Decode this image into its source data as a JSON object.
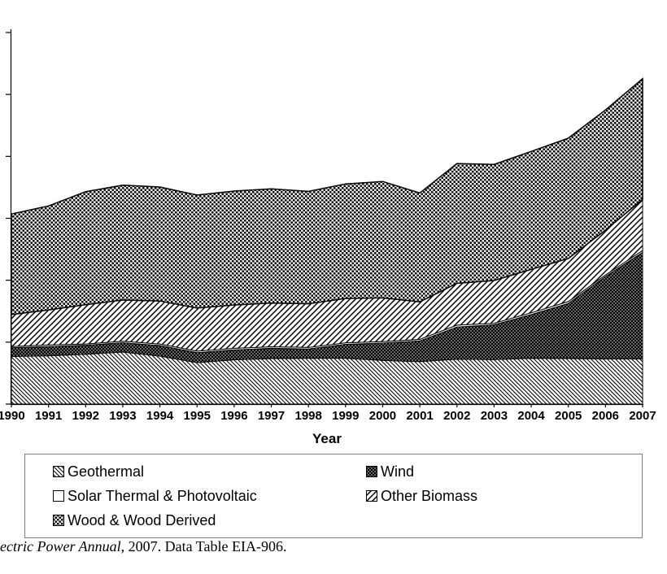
{
  "chart_data": {
    "type": "area",
    "stacked": true,
    "title": "",
    "xlabel": "Year",
    "ylabel": "",
    "ylim": [
      0,
      120
    ],
    "y_tick_labels_visible": false,
    "legend_position": "bottom",
    "x": [
      1990,
      1991,
      1992,
      1993,
      1994,
      1995,
      1996,
      1997,
      1998,
      1999,
      2000,
      2001,
      2002,
      2003,
      2004,
      2005,
      2006,
      2007
    ],
    "series": [
      {
        "name": "Geothermal",
        "pattern": "geothermal",
        "values": [
          15.4,
          15.6,
          16.1,
          16.8,
          15.5,
          13.4,
          14.3,
          14.7,
          14.8,
          14.8,
          14.1,
          13.7,
          14.5,
          14.4,
          14.8,
          14.7,
          14.6,
          14.6
        ]
      },
      {
        "name": "Wind",
        "pattern": "wind",
        "values": [
          2.8,
          3.0,
          2.9,
          3.0,
          3.4,
          3.2,
          3.2,
          3.3,
          3.0,
          4.5,
          5.6,
          6.7,
          10.4,
          11.2,
          14.1,
          17.8,
          26.6,
          34.4
        ]
      },
      {
        "name": "Solar Thermal & Photovoltaic",
        "pattern": "solar",
        "values": [
          0.4,
          0.5,
          0.4,
          0.5,
          0.5,
          0.5,
          0.5,
          0.5,
          0.5,
          0.5,
          0.5,
          0.5,
          0.6,
          0.5,
          0.6,
          0.6,
          0.5,
          0.6
        ]
      },
      {
        "name": "Other Biomass",
        "pattern": "biomass",
        "values": [
          10.3,
          11.3,
          12.7,
          13.3,
          13.9,
          13.9,
          14.0,
          14.1,
          14.1,
          14.3,
          14.1,
          12.1,
          13.5,
          13.8,
          14.0,
          13.9,
          14.5,
          16.5
        ]
      },
      {
        "name": "Wood & Wood Derived",
        "pattern": "wood",
        "values": [
          32.5,
          33.6,
          36.5,
          37.1,
          36.8,
          36.5,
          36.8,
          36.9,
          36.3,
          37.0,
          37.6,
          35.2,
          38.7,
          37.5,
          38.1,
          38.9,
          38.8,
          39.0
        ]
      }
    ]
  },
  "caption": {
    "source": "ectric Power Annual",
    "rest": ", 2007. Data Table EIA-906."
  }
}
